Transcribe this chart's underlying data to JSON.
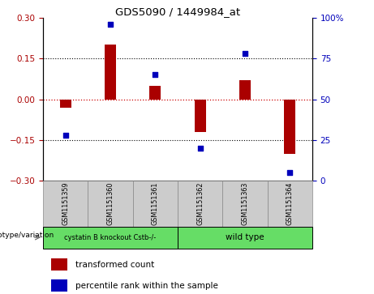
{
  "title": "GDS5090 / 1449984_at",
  "samples": [
    "GSM1151359",
    "GSM1151360",
    "GSM1151361",
    "GSM1151362",
    "GSM1151363",
    "GSM1151364"
  ],
  "transformed_count": [
    -0.03,
    0.2,
    0.05,
    -0.12,
    0.07,
    -0.2
  ],
  "percentile_rank": [
    28,
    96,
    65,
    20,
    78,
    5
  ],
  "ylim_left": [
    -0.3,
    0.3
  ],
  "ylim_right": [
    0,
    100
  ],
  "yticks_left": [
    -0.3,
    -0.15,
    0,
    0.15,
    0.3
  ],
  "yticks_right": [
    0,
    25,
    50,
    75,
    100
  ],
  "group1_label": "cystatin B knockout Cstb-/-",
  "group2_label": "wild type",
  "group_color": "#66dd66",
  "bar_color": "#aa0000",
  "scatter_color": "#0000bb",
  "zero_line_color": "#cc0000",
  "grid_color": "#000000",
  "tick_area_color": "#cccccc",
  "genotype_label": "genotype/variation",
  "legend_bar": "transformed count",
  "legend_scatter": "percentile rank within the sample",
  "bar_width": 0.25
}
